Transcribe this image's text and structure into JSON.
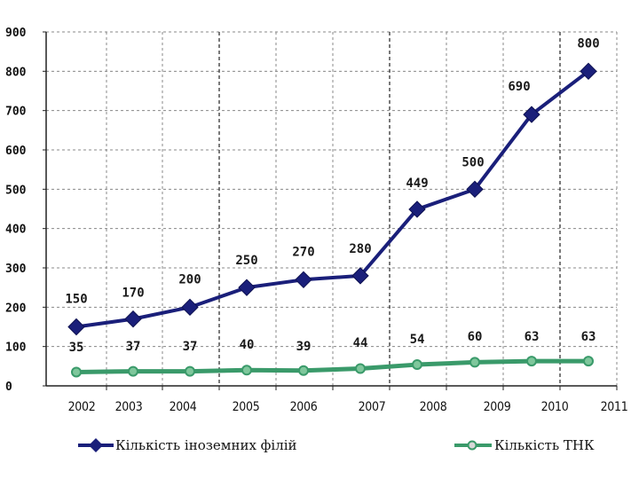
{
  "chart_data": {
    "type": "line",
    "x_ticks": [
      "2002",
      "2003",
      "2004",
      "2005",
      "2006",
      "2007",
      "2008",
      "2009",
      "2010",
      "2011"
    ],
    "y_ticks": [
      "0",
      "100",
      "200",
      "300",
      "400",
      "500",
      "600",
      "700",
      "800",
      "900"
    ],
    "ylim": [
      0,
      900
    ],
    "grid": true,
    "legend_position": "bottom",
    "series": [
      {
        "name": "Кількість іноземних філій",
        "color": "#1a1f7a",
        "marker": "diamond",
        "values": [
          150,
          170,
          200,
          250,
          270,
          280,
          449,
          500,
          690,
          800
        ],
        "labels": [
          "150",
          "170",
          "200",
          "250",
          "270",
          "280",
          "449",
          "500",
          "690",
          "800"
        ]
      },
      {
        "name": "Кількість ТНК",
        "color": "#3a9a6a",
        "marker": "circle",
        "values": [
          35,
          37,
          37,
          40,
          39,
          44,
          54,
          60,
          63,
          63
        ],
        "labels": [
          "35",
          "37",
          "37",
          "40",
          "39",
          "44",
          "54",
          "60",
          "63",
          "63"
        ]
      }
    ]
  }
}
